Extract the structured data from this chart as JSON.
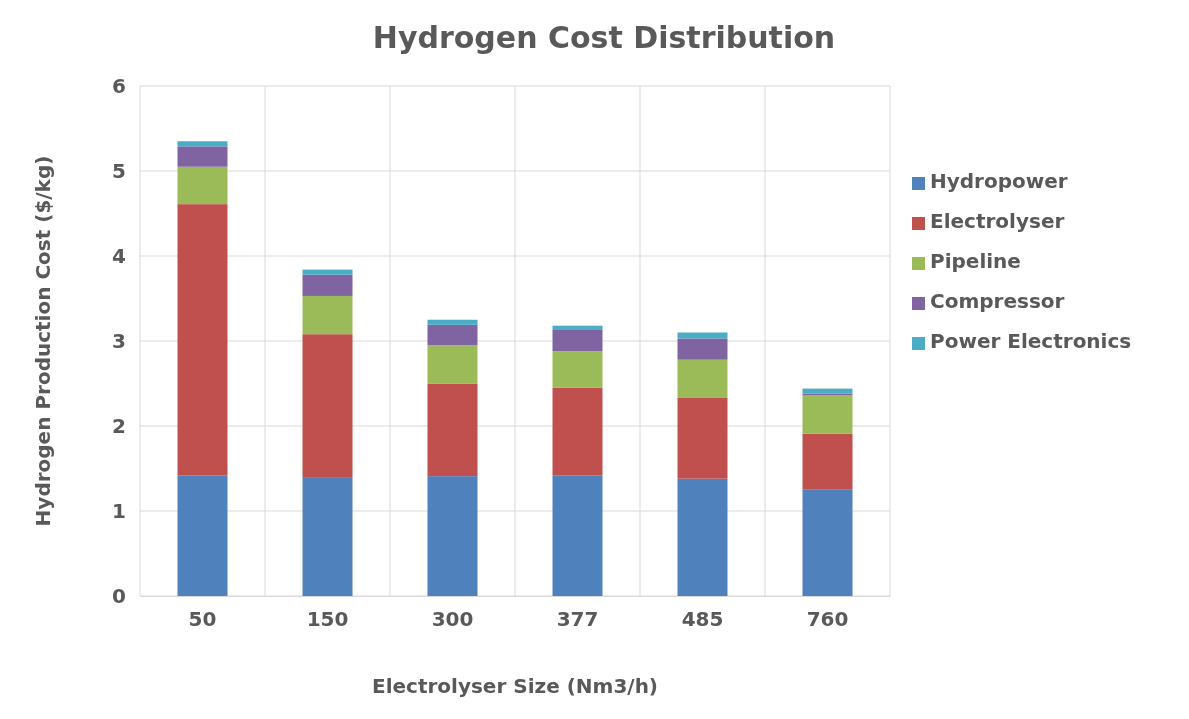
{
  "chart_data": {
    "type": "bar",
    "title": "Hydrogen Cost Distribution",
    "xlabel": "Electrolyser Size (Nm3/h)",
    "ylabel": "Hydrogen Production Cost ($/kg)",
    "categories": [
      "50",
      "150",
      "300",
      "377",
      "485",
      "760"
    ],
    "series": [
      {
        "name": "Hydropower",
        "color": "#4f81bd",
        "values": [
          1.42,
          1.39,
          1.41,
          1.42,
          1.38,
          1.25
        ]
      },
      {
        "name": "Electrolyser",
        "color": "#c0504d",
        "values": [
          3.19,
          1.69,
          1.09,
          1.03,
          0.95,
          0.66
        ]
      },
      {
        "name": "Pipeline",
        "color": "#9bbb59",
        "values": [
          0.44,
          0.45,
          0.45,
          0.43,
          0.45,
          0.45
        ]
      },
      {
        "name": "Compressor",
        "color": "#8064a2",
        "values": [
          0.24,
          0.25,
          0.24,
          0.25,
          0.25,
          0.02
        ]
      },
      {
        "name": "Power Electronics",
        "color": "#4bacc6",
        "values": [
          0.06,
          0.06,
          0.06,
          0.05,
          0.07,
          0.06
        ]
      }
    ],
    "stacked": true,
    "ylim": [
      0,
      6
    ],
    "yticks": [
      0,
      1,
      2,
      3,
      4,
      5,
      6
    ],
    "grid": true,
    "legend": "right"
  }
}
